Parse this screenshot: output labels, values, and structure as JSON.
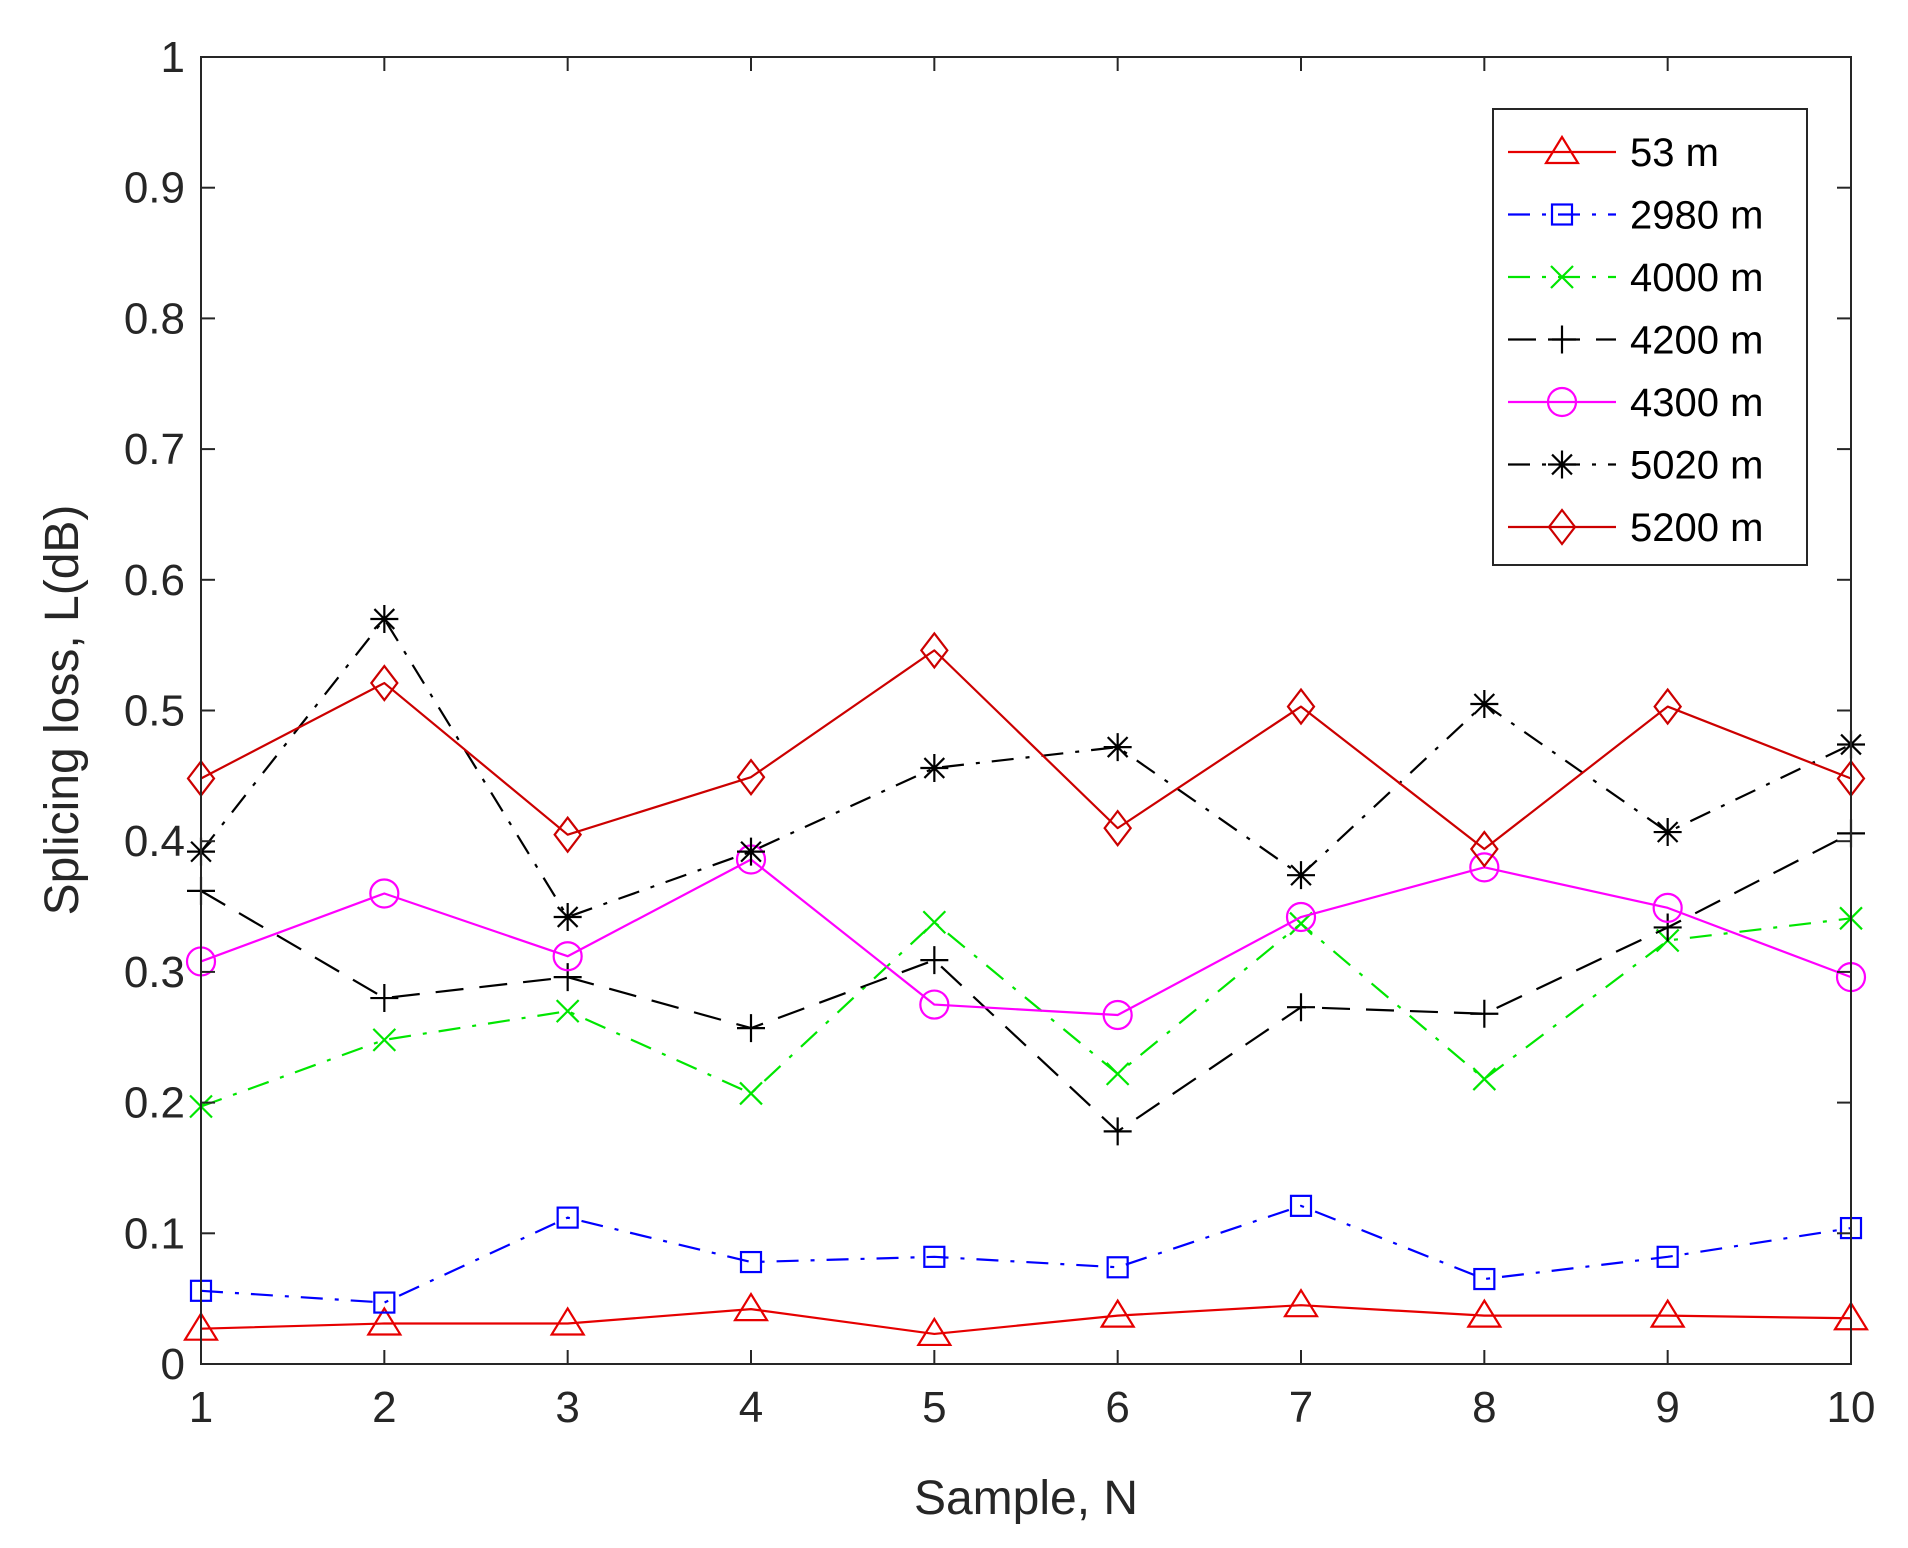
{
  "chart_data": {
    "type": "line",
    "title": "",
    "xlabel": "Sample, N",
    "ylabel": "Splicing loss, L(dB)",
    "x": [
      1,
      2,
      3,
      4,
      5,
      6,
      7,
      8,
      9,
      10
    ],
    "xlim": [
      1,
      10
    ],
    "ylim": [
      0,
      1
    ],
    "xticks": [
      "1",
      "2",
      "3",
      "4",
      "5",
      "6",
      "7",
      "8",
      "9",
      "10"
    ],
    "yticks": [
      "0",
      "0.1",
      "0.2",
      "0.3",
      "0.4",
      "0.5",
      "0.6",
      "0.7",
      "0.8",
      "0.9",
      "1"
    ],
    "grid": false,
    "legend_position": "top-right",
    "series": [
      {
        "name": "53 m",
        "color": "#e60000",
        "line": "solid",
        "marker": "triangle",
        "values": [
          0.027,
          0.031,
          0.031,
          0.042,
          0.023,
          0.037,
          0.045,
          0.037,
          0.037,
          0.035
        ]
      },
      {
        "name": "2980 m",
        "color": "#0000ff",
        "line": "dashdot",
        "marker": "square",
        "values": [
          0.056,
          0.047,
          0.112,
          0.078,
          0.082,
          0.074,
          0.121,
          0.065,
          0.082,
          0.104
        ]
      },
      {
        "name": "4000 m",
        "color": "#00e600",
        "line": "dashdot",
        "marker": "x",
        "values": [
          0.197,
          0.248,
          0.27,
          0.207,
          0.338,
          0.222,
          0.337,
          0.218,
          0.324,
          0.341
        ]
      },
      {
        "name": "4200 m",
        "color": "#000000",
        "line": "dashed",
        "marker": "plus",
        "values": [
          0.362,
          0.28,
          0.296,
          0.257,
          0.309,
          0.178,
          0.273,
          0.268,
          0.334,
          0.406
        ]
      },
      {
        "name": "4300 m",
        "color": "#ff00ff",
        "line": "solid",
        "marker": "circle",
        "values": [
          0.308,
          0.36,
          0.312,
          0.386,
          0.275,
          0.267,
          0.342,
          0.38,
          0.349,
          0.296
        ]
      },
      {
        "name": "5020 m",
        "color": "#000000",
        "line": "dashdot",
        "marker": "star",
        "values": [
          0.392,
          0.57,
          0.342,
          0.392,
          0.456,
          0.472,
          0.374,
          0.505,
          0.407,
          0.474
        ]
      },
      {
        "name": "5200 m",
        "color": "#cc0000",
        "line": "solid",
        "marker": "diamond",
        "values": [
          0.448,
          0.521,
          0.405,
          0.449,
          0.546,
          0.41,
          0.503,
          0.394,
          0.503,
          0.448
        ]
      }
    ]
  }
}
